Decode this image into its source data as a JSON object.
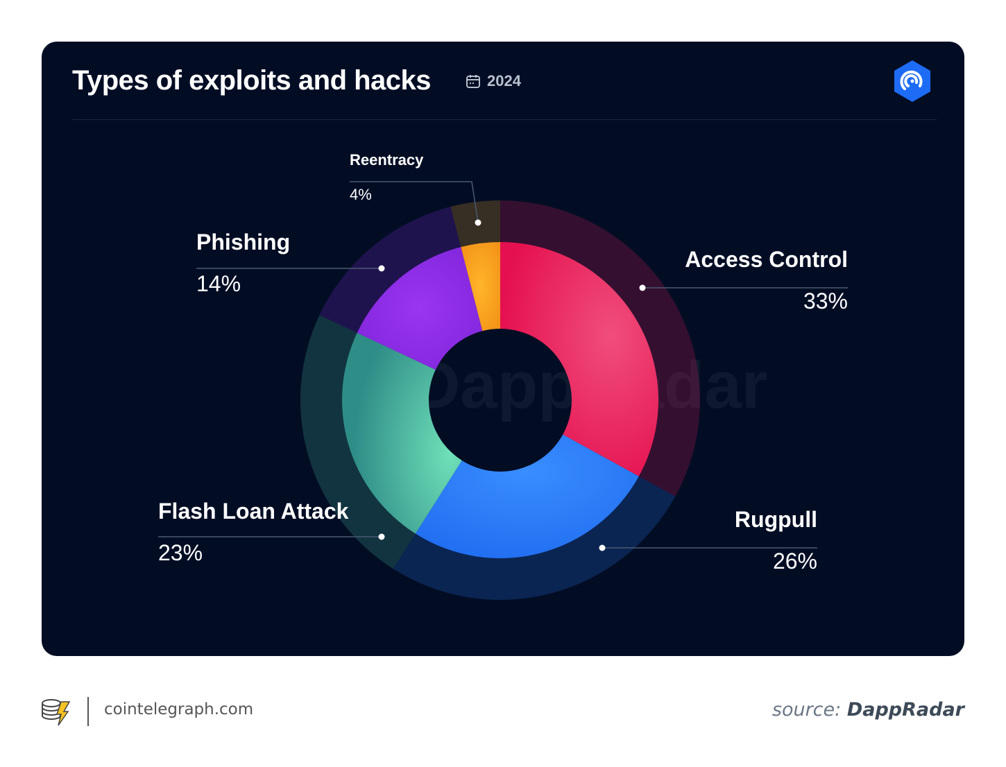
{
  "header": {
    "title": "Types of exploits and hacks",
    "year": "2024"
  },
  "watermark": "DappRadar",
  "footer": {
    "site": "cointelegraph.com",
    "source_prefix": "source:",
    "source_name": "DappRadar"
  },
  "chart_data": {
    "type": "pie",
    "title": "Types of exploits and hacks",
    "subtitle": "2024",
    "slices": [
      {
        "label": "Access Control",
        "value": 33,
        "display": "33%",
        "color": "#e8175d"
      },
      {
        "label": "Rugpull",
        "value": 26,
        "display": "26%",
        "color": "#2f7df6"
      },
      {
        "label": "Flash Loan Attack",
        "value": 23,
        "display": "23%",
        "color": "#4fbfa6"
      },
      {
        "label": "Phishing",
        "value": 14,
        "display": "14%",
        "color": "#8a2be2"
      },
      {
        "label": "Reentracy",
        "value": 4,
        "display": "4%",
        "color": "#f5a623"
      }
    ]
  }
}
